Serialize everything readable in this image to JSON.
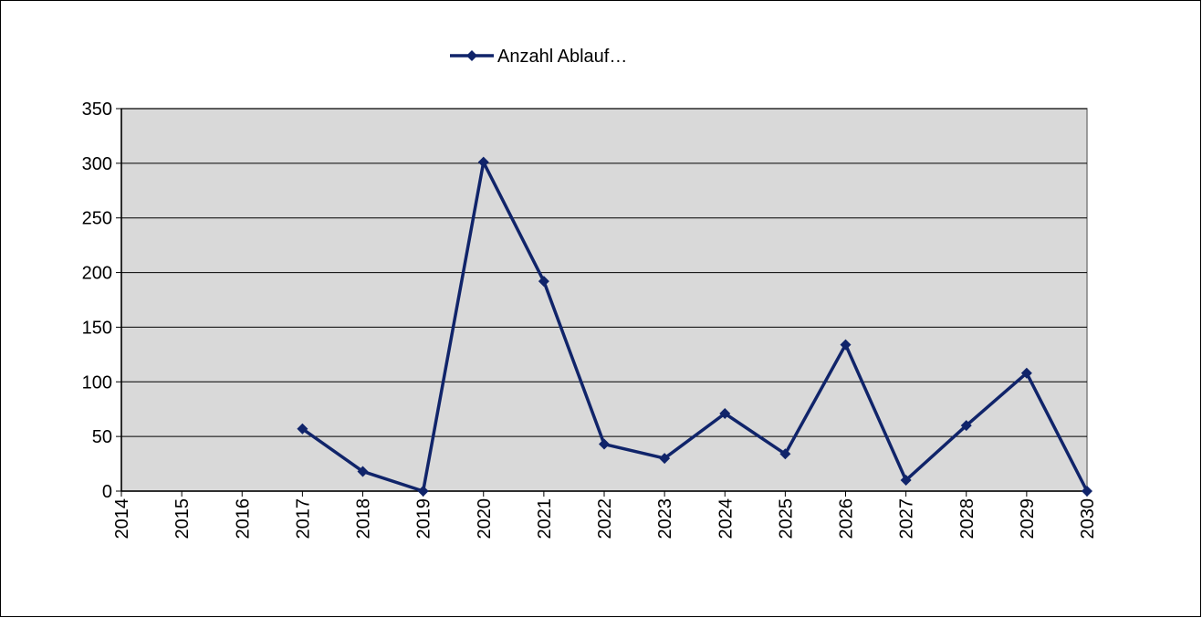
{
  "chart_data": {
    "type": "line",
    "categories": [
      "2014",
      "2015",
      "2016",
      "2017",
      "2018",
      "2019",
      "2020",
      "2021",
      "2022",
      "2023",
      "2024",
      "2025",
      "2026",
      "2027",
      "2028",
      "2029",
      "2030"
    ],
    "series": [
      {
        "name": "Anzahl Ablauf…",
        "color": "#10246a",
        "values": [
          null,
          null,
          null,
          57,
          18,
          0,
          301,
          192,
          43,
          30,
          71,
          34,
          134,
          10,
          60,
          108,
          0
        ]
      }
    ],
    "ylim": [
      0,
      350
    ],
    "yticks": [
      0,
      50,
      100,
      150,
      200,
      250,
      300,
      350
    ],
    "grid": true,
    "legend": "top"
  }
}
